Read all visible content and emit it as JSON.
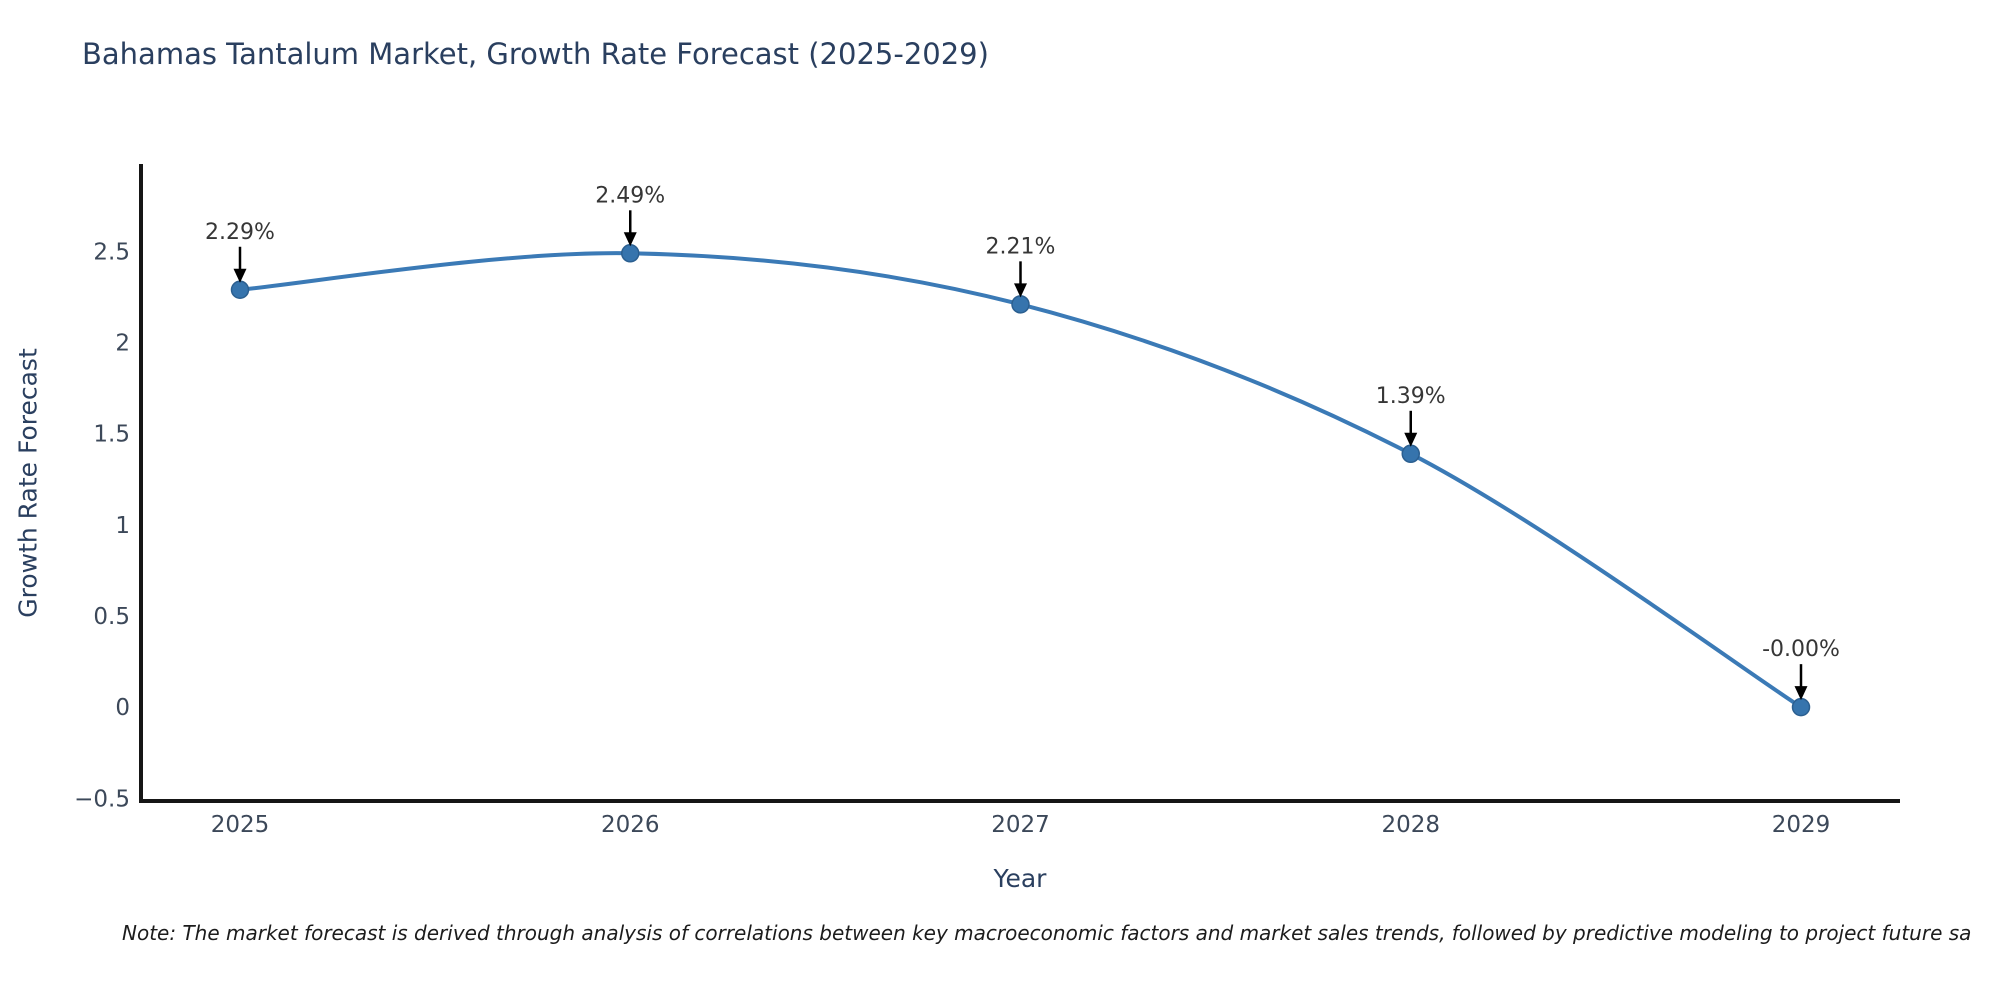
{
  "note": "Note: The market forecast is derived through analysis of correlations between key macroeconomic factors and market sales trends, followed by predictive modeling to project future sa",
  "chart_data": {
    "type": "line",
    "title": "Bahamas Tantalum Market, Growth Rate Forecast (2025-2029)",
    "xlabel": "Year",
    "ylabel": "Growth Rate Forecast",
    "categories": [
      "2025",
      "2026",
      "2027",
      "2028",
      "2029"
    ],
    "series": [
      {
        "name": "Growth Rate Forecast",
        "values": [
          2.29,
          2.49,
          2.21,
          1.39,
          -0.0
        ],
        "point_labels": [
          "2.29%",
          "2.49%",
          "2.21%",
          "1.39%",
          "-0.00%"
        ]
      }
    ],
    "line_shape": "spline",
    "grid": false,
    "legend": "none",
    "ylim": [
      -0.515,
      2.98
    ],
    "ytick_values": [
      2.5,
      2,
      1.5,
      1,
      0.5,
      0,
      -0.5
    ],
    "ytick_labels": [
      "2.5",
      "2",
      "1.5",
      "1",
      "0.5",
      "0",
      "−0.5"
    ],
    "colors": {
      "line": "#3b7ab6",
      "marker_fill": "#3674ad",
      "marker_edge": "#2b5f90",
      "axis_line": "#161616",
      "title_text": "#2a3f5f",
      "tick_text": "#3c4859",
      "annotation_text": "#363636",
      "arrow": "#000000",
      "background": "#ffffff"
    }
  }
}
